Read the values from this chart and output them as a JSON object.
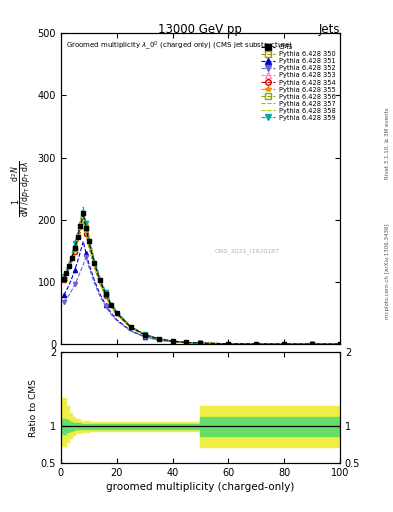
{
  "title_top": "13000 GeV pp",
  "title_right": "Jets",
  "xlabel": "groomed multiplicity (charged-only)",
  "ylabel_ratio": "Ratio to CMS",
  "right_label": "mcplots.cern.ch [arXiv:1306.3436]",
  "rivet_label": "Rivet 3.1.10, ≥ 3M events",
  "watermark": "CMS_2021_I1920187",
  "xlim": [
    0,
    100
  ],
  "ylim_main": [
    0,
    500
  ],
  "ylim_ratio": [
    0.5,
    2.0
  ],
  "series": [
    {
      "label": "Pythia 6.428 350",
      "color": "#999900",
      "linestyle": "--",
      "marker": "s",
      "filled": false
    },
    {
      "label": "Pythia 6.428 351",
      "color": "#0000cc",
      "linestyle": "--",
      "marker": "^",
      "filled": true
    },
    {
      "label": "Pythia 6.428 352",
      "color": "#6666cc",
      "linestyle": "--",
      "marker": "v",
      "filled": true
    },
    {
      "label": "Pythia 6.428 353",
      "color": "#ff88bb",
      "linestyle": "--",
      "marker": "^",
      "filled": false
    },
    {
      "label": "Pythia 6.428 354",
      "color": "#cc0000",
      "linestyle": "--",
      "marker": "o",
      "filled": false
    },
    {
      "label": "Pythia 6.428 355",
      "color": "#ff8800",
      "linestyle": "--",
      "marker": "*",
      "filled": true
    },
    {
      "label": "Pythia 6.428 356",
      "color": "#88aa00",
      "linestyle": "--",
      "marker": "s",
      "filled": false
    },
    {
      "label": "Pythia 6.428 357",
      "color": "#ccaa00",
      "linestyle": "--",
      "marker": "",
      "filled": false
    },
    {
      "label": "Pythia 6.428 358",
      "color": "#aacc00",
      "linestyle": "--",
      "marker": "",
      "filled": false
    },
    {
      "label": "Pythia 6.428 359",
      "color": "#00aaaa",
      "linestyle": "--",
      "marker": "v",
      "filled": true
    }
  ],
  "background_color": "#ffffff"
}
